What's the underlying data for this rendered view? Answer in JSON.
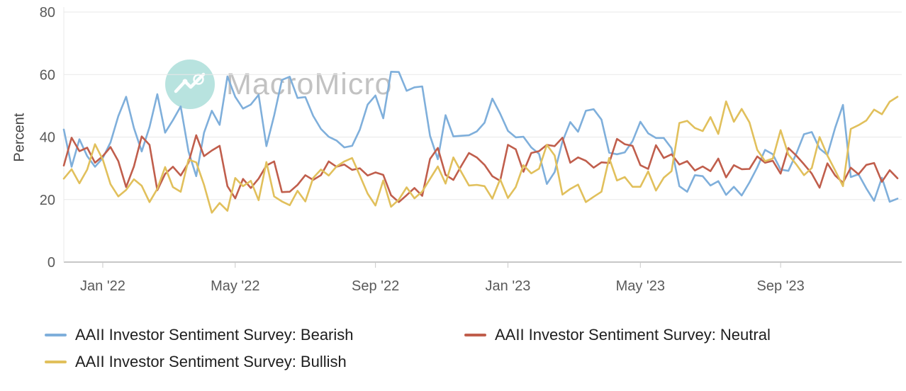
{
  "watermark": {
    "text": "MacroMicro"
  },
  "chart_data": {
    "type": "line",
    "title": "",
    "xlabel": "",
    "ylabel": "Percent",
    "ylim": [
      0,
      80
    ],
    "grid": true,
    "legend_position": "bottom-left",
    "y_ticks": [
      0,
      20,
      40,
      60,
      80
    ],
    "x_ticks": [
      {
        "date": "2022-01",
        "label": "Jan '22"
      },
      {
        "date": "2022-05",
        "label": "May '22"
      },
      {
        "date": "2022-09",
        "label": "Sep '22"
      },
      {
        "date": "2023-01",
        "label": "Jan '23"
      },
      {
        "date": "2023-05",
        "label": "May '23"
      },
      {
        "date": "2023-09",
        "label": "Sep '23"
      }
    ],
    "x": [
      "2021-12-01",
      "2021-12-08",
      "2021-12-15",
      "2021-12-22",
      "2021-12-29",
      "2022-01-05",
      "2022-01-12",
      "2022-01-19",
      "2022-01-26",
      "2022-02-02",
      "2022-02-09",
      "2022-02-16",
      "2022-02-23",
      "2022-03-02",
      "2022-03-09",
      "2022-03-16",
      "2022-03-23",
      "2022-03-30",
      "2022-04-06",
      "2022-04-13",
      "2022-04-20",
      "2022-04-27",
      "2022-05-04",
      "2022-05-11",
      "2022-05-18",
      "2022-05-25",
      "2022-06-01",
      "2022-06-08",
      "2022-06-15",
      "2022-06-22",
      "2022-06-29",
      "2022-07-06",
      "2022-07-13",
      "2022-07-20",
      "2022-07-27",
      "2022-08-03",
      "2022-08-10",
      "2022-08-17",
      "2022-08-24",
      "2022-08-31",
      "2022-09-07",
      "2022-09-14",
      "2022-09-21",
      "2022-09-28",
      "2022-10-05",
      "2022-10-12",
      "2022-10-19",
      "2022-10-26",
      "2022-11-02",
      "2022-11-09",
      "2022-11-16",
      "2022-11-23",
      "2022-11-30",
      "2022-12-07",
      "2022-12-14",
      "2022-12-21",
      "2022-12-28",
      "2023-01-04",
      "2023-01-11",
      "2023-01-18",
      "2023-01-25",
      "2023-02-01",
      "2023-02-08",
      "2023-02-15",
      "2023-02-22",
      "2023-03-01",
      "2023-03-08",
      "2023-03-15",
      "2023-03-22",
      "2023-03-29",
      "2023-04-05",
      "2023-04-12",
      "2023-04-19",
      "2023-04-26",
      "2023-05-03",
      "2023-05-10",
      "2023-05-17",
      "2023-05-24",
      "2023-05-31",
      "2023-06-07",
      "2023-06-14",
      "2023-06-21",
      "2023-06-28",
      "2023-07-05",
      "2023-07-12",
      "2023-07-19",
      "2023-07-26",
      "2023-08-02",
      "2023-08-09",
      "2023-08-16",
      "2023-08-23",
      "2023-08-30",
      "2023-09-06",
      "2023-09-13",
      "2023-09-20",
      "2023-09-27",
      "2023-10-04",
      "2023-10-11",
      "2023-10-18",
      "2023-10-25",
      "2023-11-01",
      "2023-11-08",
      "2023-11-15",
      "2023-11-22",
      "2023-11-29",
      "2023-12-06",
      "2023-12-13",
      "2023-12-20"
    ],
    "series": [
      {
        "key": "bearish",
        "name": "AAII Investor Sentiment Survey: Bearish",
        "color": "#7fafdb",
        "values": [
          42.4,
          30.5,
          39.3,
          33.9,
          30.5,
          33.3,
          38.3,
          46.7,
          52.9,
          42.9,
          35.4,
          43.2,
          53.7,
          41.4,
          45.4,
          49.8,
          35.4,
          27.5,
          41.4,
          48.4,
          43.9,
          59.4,
          52.9,
          49.1,
          50.4,
          53.5,
          37.1,
          46.9,
          58.3,
          59.3,
          52.5,
          52.8,
          46.8,
          42.6,
          40.1,
          38.9,
          36.7,
          37.2,
          42.4,
          50.4,
          53.3,
          46.0,
          60.9,
          60.8,
          54.8,
          55.9,
          56.2,
          40.4,
          32.9,
          47.0,
          40.2,
          40.4,
          40.6,
          41.8,
          44.6,
          52.3,
          47.5,
          42.0,
          39.9,
          40.1,
          36.7,
          34.6,
          25.0,
          28.8,
          38.6,
          44.8,
          41.7,
          48.4,
          48.9,
          45.6,
          35.0,
          34.5,
          35.1,
          38.7,
          44.9,
          41.2,
          39.7,
          39.7,
          36.4,
          24.3,
          22.5,
          27.8,
          27.5,
          24.5,
          25.9,
          21.5,
          24.1,
          21.3,
          25.5,
          30.3,
          35.9,
          34.5,
          29.6,
          29.2,
          34.6,
          40.9,
          41.6,
          36.3,
          34.3,
          43.0,
          50.3,
          27.2,
          28.1,
          23.6,
          19.6,
          27.0,
          19.3,
          20.3
        ]
      },
      {
        "key": "neutral",
        "name": "AAII Investor Sentiment Survey: Neutral",
        "color": "#c05e4c",
        "values": [
          30.9,
          39.8,
          35.5,
          36.6,
          31.8,
          33.9,
          36.8,
          32.3,
          24.0,
          30.6,
          40.2,
          37.5,
          23.0,
          28.2,
          30.5,
          27.7,
          31.8,
          40.6,
          33.9,
          35.7,
          37.2,
          24.3,
          20.4,
          26.6,
          23.7,
          26.7,
          30.9,
          32.2,
          22.4,
          22.5,
          24.7,
          27.8,
          26.3,
          27.8,
          32.2,
          30.5,
          31.2,
          29.5,
          30.0,
          27.7,
          28.7,
          27.9,
          21.4,
          19.2,
          21.4,
          23.7,
          21.2,
          33.0,
          36.5,
          27.9,
          26.3,
          30.7,
          34.9,
          33.5,
          31.1,
          27.5,
          26.0,
          37.5,
          36.1,
          28.9,
          34.9,
          35.5,
          37.5,
          37.1,
          39.8,
          31.8,
          33.5,
          32.4,
          30.2,
          31.9,
          31.7,
          39.4,
          37.7,
          37.2,
          31.0,
          29.8,
          37.4,
          33.3,
          34.5,
          31.2,
          32.3,
          29.3,
          30.6,
          29.1,
          33.1,
          27.1,
          31.0,
          29.7,
          29.8,
          33.8,
          31.8,
          32.4,
          28.3,
          36.5,
          34.1,
          31.3,
          28.3,
          23.8,
          31.6,
          27.7,
          25.4,
          30.2,
          28.1,
          31.1,
          31.7,
          25.7,
          29.4,
          26.8
        ]
      },
      {
        "key": "bullish",
        "name": "AAII Investor Sentiment Survey: Bullish",
        "color": "#e1c05c",
        "values": [
          26.7,
          29.7,
          25.2,
          29.6,
          37.7,
          32.8,
          24.9,
          21.0,
          23.1,
          26.5,
          24.4,
          19.2,
          23.4,
          30.4,
          24.0,
          22.5,
          32.8,
          31.9,
          24.7,
          15.8,
          18.9,
          16.4,
          26.9,
          24.3,
          26.0,
          19.8,
          32.0,
          21.0,
          19.4,
          18.2,
          22.8,
          19.4,
          26.9,
          29.6,
          27.7,
          30.6,
          32.2,
          33.3,
          27.7,
          21.9,
          18.1,
          26.1,
          17.7,
          20.0,
          23.9,
          20.4,
          22.6,
          26.6,
          30.6,
          25.1,
          33.5,
          28.9,
          24.5,
          24.7,
          24.3,
          20.3,
          26.5,
          20.5,
          24.0,
          31.0,
          28.4,
          29.9,
          37.5,
          34.1,
          21.6,
          23.4,
          24.8,
          19.2,
          20.9,
          22.5,
          33.3,
          26.1,
          27.2,
          24.1,
          24.1,
          29.0,
          22.9,
          27.0,
          29.1,
          44.5,
          45.2,
          42.9,
          41.9,
          46.4,
          41.0,
          51.4,
          44.9,
          49.0,
          44.7,
          35.9,
          32.3,
          33.1,
          42.2,
          34.4,
          31.3,
          27.8,
          30.1,
          40.0,
          34.1,
          29.3,
          24.3,
          42.6,
          43.8,
          45.3,
          48.8,
          47.3,
          51.3,
          52.9
        ]
      }
    ]
  }
}
